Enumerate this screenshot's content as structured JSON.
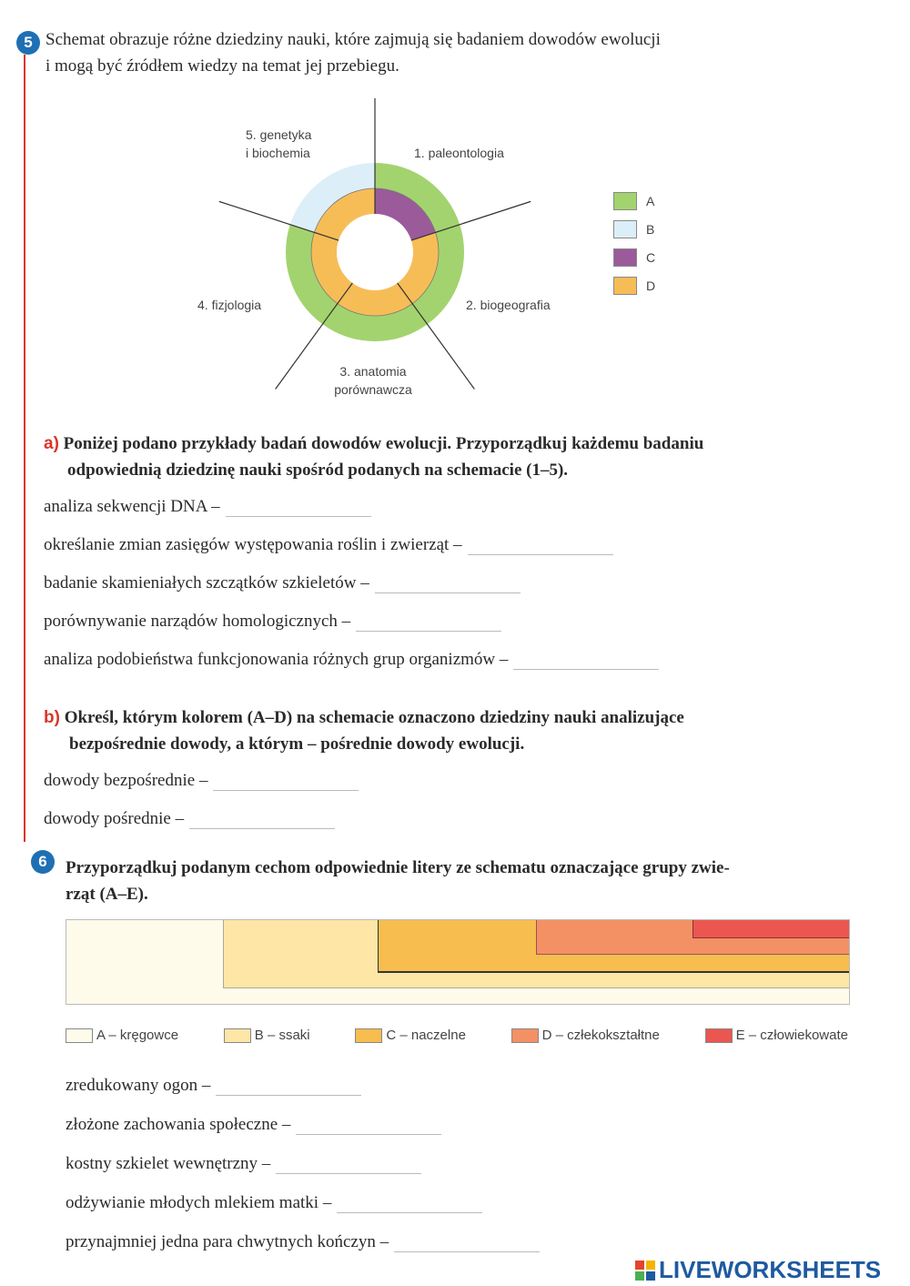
{
  "task5": {
    "number": "5",
    "intro_line1": "Schemat obrazuje różne dziedziny nauki, które zajmują się badaniem dowodów ewolucji",
    "intro_line2": "i mogą być źródłem wiedzy na temat jej przebiegu.",
    "diagram": {
      "sectors": [
        {
          "label_line1": "1. paleontologia",
          "label_line2": "",
          "outer": "A",
          "inner": "C"
        },
        {
          "label_line1": "2. biogeografia",
          "label_line2": "",
          "outer": "A",
          "inner": "D"
        },
        {
          "label_line1": "3. anatomia",
          "label_line2": "porównawcza",
          "outer": "A",
          "inner": "D"
        },
        {
          "label_line1": "4. fizjologia",
          "label_line2": "",
          "outer": "A",
          "inner": "D"
        },
        {
          "label_line1": "5. genetyka",
          "label_line2": "i biochemia",
          "outer": "B",
          "inner": "D"
        }
      ],
      "legend": [
        {
          "key": "A",
          "color": "#a3d36e"
        },
        {
          "key": "B",
          "color": "#dceff8"
        },
        {
          "key": "C",
          "color": "#9b5a9a"
        },
        {
          "key": "D",
          "color": "#f6bd57"
        }
      ]
    },
    "a": {
      "marker": "a)",
      "line1": "Poniżej podano przykłady badań dowodów ewolucji. Przyporządkuj każdemu badaniu",
      "line2": "odpowiednią dziedzinę nauki spośród podanych na schemacie (1–5).",
      "items": [
        "analiza sekwencji DNA –",
        "określanie zmian zasięgów występowania roślin i zwierząt –",
        "badanie skamieniałych szczątków szkieletów –",
        "porównywanie narządów homologicznych –",
        "analiza podobieństwa funkcjonowania różnych grup organizmów –"
      ]
    },
    "b": {
      "marker": "b)",
      "line1": "Określ, którym kolorem (A–D) na schemacie oznaczono dziedziny nauki analizujące",
      "line2": "bezpośrednie dowody, a którym – pośrednie dowody ewolucji.",
      "items": [
        "dowody bezpośrednie –",
        "dowody pośrednie –"
      ]
    }
  },
  "task6": {
    "number": "6",
    "line1": "Przyporządkuj podanym cechom odpowiednie litery ze schematu oznaczające grupy zwie-",
    "line2": "rząt (A–E).",
    "legend": [
      {
        "label": "A – kręgowce",
        "color": "#fefbea"
      },
      {
        "label": "B – ssaki",
        "color": "#fde6a6"
      },
      {
        "label": "C – naczelne",
        "color": "#f7bd4e"
      },
      {
        "label": "D – człekokształtne",
        "color": "#f39165"
      },
      {
        "label": "E – człowiekowate",
        "color": "#ec5650"
      }
    ],
    "items": [
      "zredukowany ogon –",
      "złożone zachowania społeczne –",
      "kostny szkielet wewnętrzny –",
      "odżywianie młodych mlekiem matki –",
      "przynajmniej jedna para chwytnych kończyn –"
    ]
  },
  "watermark": "LIVEWORKSHEETS"
}
